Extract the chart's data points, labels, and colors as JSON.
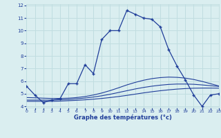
{
  "x": [
    0,
    1,
    2,
    3,
    4,
    5,
    6,
    7,
    8,
    9,
    10,
    11,
    12,
    13,
    14,
    15,
    16,
    17,
    18,
    19,
    20,
    21,
    22,
    23
  ],
  "main_line": [
    5.6,
    4.9,
    4.3,
    4.5,
    4.6,
    5.8,
    5.8,
    7.3,
    6.6,
    9.3,
    10.0,
    10.0,
    11.6,
    11.3,
    11.0,
    10.9,
    10.3,
    8.5,
    7.2,
    6.1,
    4.9,
    4.0,
    4.9,
    5.0
  ],
  "trend1": [
    4.4,
    4.4,
    4.4,
    4.4,
    4.42,
    4.45,
    4.48,
    4.52,
    4.57,
    4.63,
    4.7,
    4.78,
    4.87,
    4.97,
    5.07,
    5.16,
    5.24,
    5.31,
    5.37,
    5.41,
    5.44,
    5.45,
    5.45,
    5.44
  ],
  "trend2": [
    4.5,
    4.5,
    4.5,
    4.5,
    4.52,
    4.55,
    4.6,
    4.66,
    4.74,
    4.84,
    4.96,
    5.1,
    5.24,
    5.38,
    5.5,
    5.6,
    5.68,
    5.74,
    5.77,
    5.77,
    5.75,
    5.7,
    5.64,
    5.58
  ],
  "trend3": [
    4.7,
    4.68,
    4.65,
    4.63,
    4.63,
    4.65,
    4.7,
    4.78,
    4.9,
    5.06,
    5.25,
    5.47,
    5.7,
    5.9,
    6.07,
    6.2,
    6.28,
    6.32,
    6.3,
    6.24,
    6.13,
    5.98,
    5.8,
    5.62
  ],
  "line_color": "#1f3d99",
  "bg_color": "#daeef0",
  "grid_color": "#c0dde0",
  "xlabel": "Graphe des températures (°c)",
  "xlim": [
    0,
    23
  ],
  "ylim": [
    3.9,
    12.1
  ],
  "xticks": [
    0,
    1,
    2,
    3,
    4,
    5,
    6,
    7,
    8,
    9,
    10,
    11,
    12,
    13,
    14,
    15,
    16,
    17,
    18,
    19,
    20,
    21,
    22,
    23
  ],
  "yticks": [
    4,
    5,
    6,
    7,
    8,
    9,
    10,
    11,
    12
  ]
}
